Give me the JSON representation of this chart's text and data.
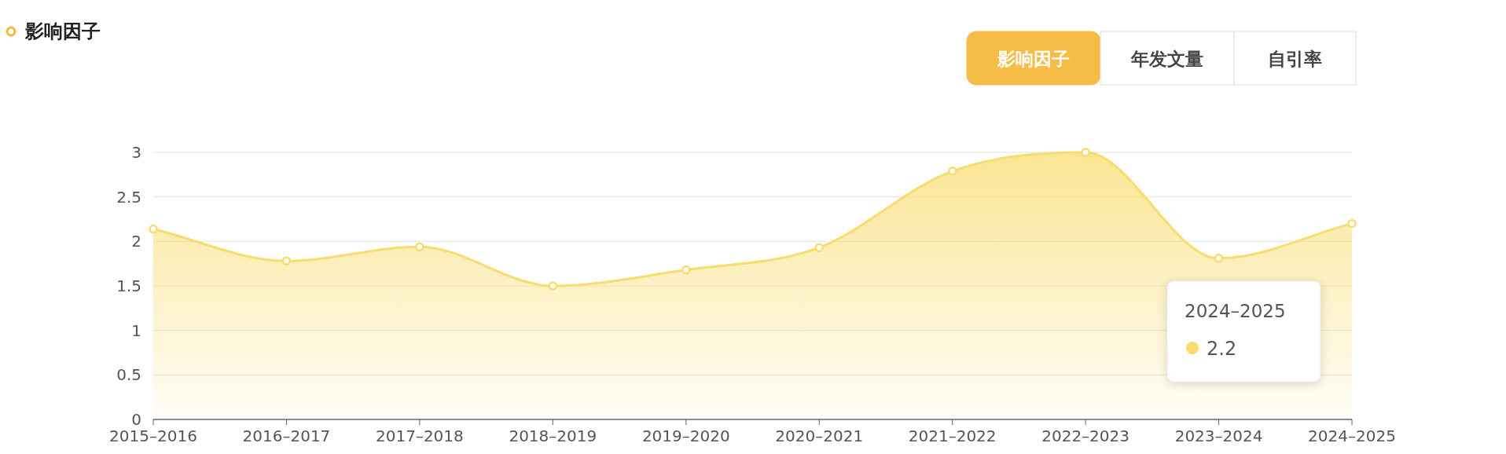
{
  "chart_data": {
    "type": "area",
    "title": "影响因子",
    "categories": [
      "2015–2016",
      "2016–2017",
      "2017–2018",
      "2018–2019",
      "2019–2020",
      "2020–2021",
      "2021–2022",
      "2022–2023",
      "2023–2024",
      "2024–2025"
    ],
    "series": [
      {
        "color": "#f9dc6e",
        "values": [
          2.14,
          1.78,
          1.94,
          1.5,
          1.68,
          1.93,
          2.79,
          3.0,
          1.81,
          2.2
        ]
      }
    ],
    "ylim": [
      0,
      3
    ],
    "yticks": [
      0,
      0.5,
      1,
      1.5,
      2,
      2.5,
      3
    ],
    "grid": "y",
    "marker": "circle",
    "annotations": [
      "影响因子",
      "年发文量",
      "自引率",
      "2024–2025",
      "2.2"
    ]
  }
}
